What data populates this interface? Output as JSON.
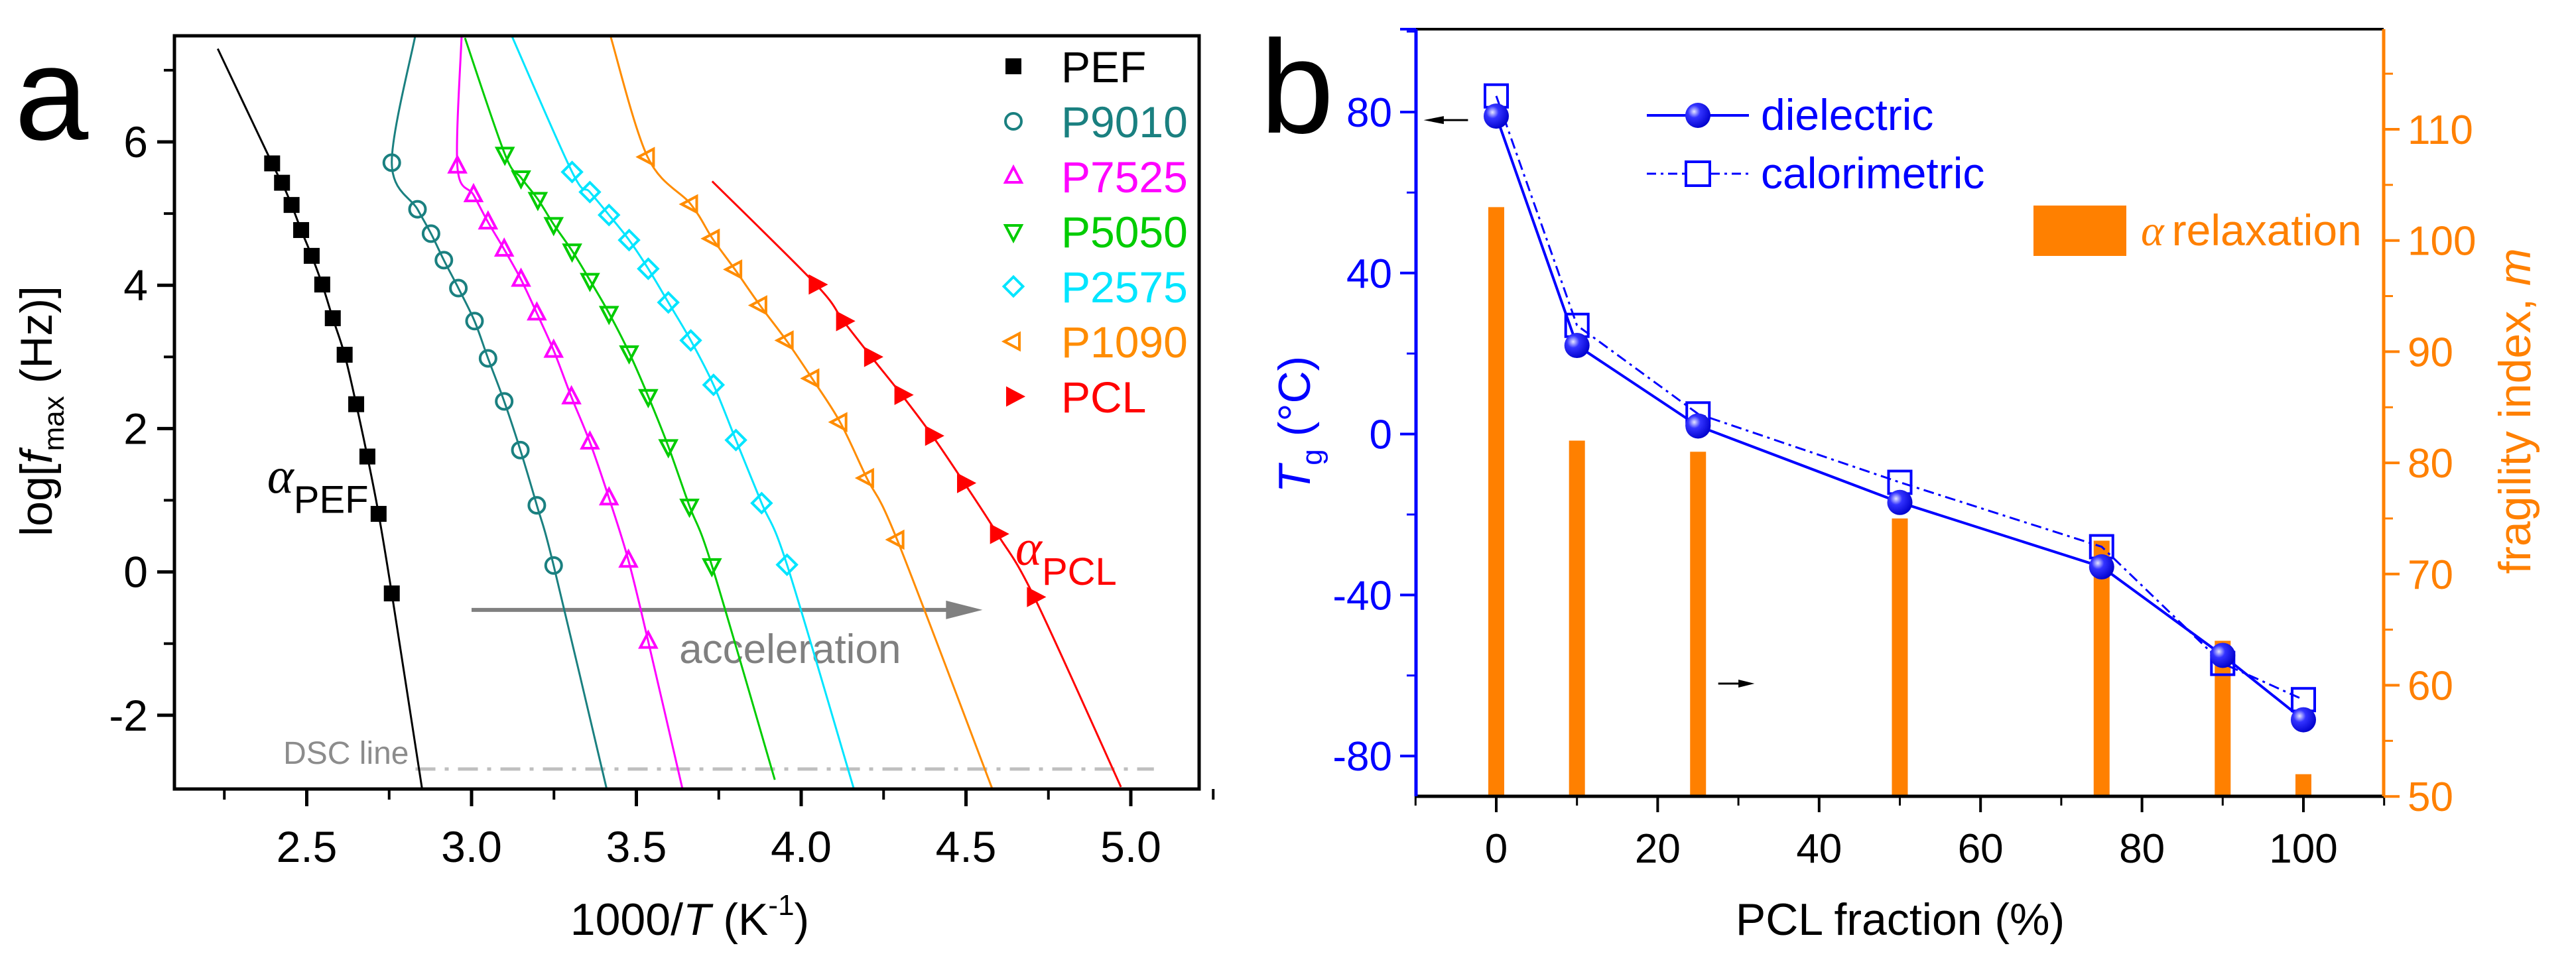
{
  "chart_data": [
    {
      "panel_label": "a",
      "type": "scatter",
      "xlabel_parts": [
        "1000/",
        "T",
        " (K",
        "-1",
        ")"
      ],
      "ylabel_parts": [
        "log[",
        "f",
        "max",
        " (Hz)]"
      ],
      "xlim": [
        2.1,
        5.2
      ],
      "ylim": [
        -3.03,
        7.5
      ],
      "xticks": [
        2.5,
        3.0,
        3.5,
        4.0,
        4.5,
        5.0
      ],
      "xtick_labels": [
        "2.5",
        "3.0",
        "3.5",
        "4.0",
        "4.5",
        "5.0"
      ],
      "yticks": [
        -2,
        0,
        2,
        4,
        6
      ],
      "ytick_labels": [
        "-2",
        "0",
        "2",
        "4",
        "6"
      ],
      "legend_position": "top-right",
      "series": [
        {
          "name": "PEF",
          "marker": "square-filled",
          "color": "#000000",
          "x": [
            2.395,
            2.425,
            2.454,
            2.483,
            2.515,
            2.547,
            2.579,
            2.615,
            2.65,
            2.684,
            2.718,
            2.758
          ],
          "y": [
            5.7,
            5.43,
            5.12,
            4.77,
            4.41,
            4.01,
            3.54,
            3.03,
            2.34,
            1.61,
            0.81,
            -0.3
          ],
          "fit_start": [
            2.23,
            7.3
          ],
          "fit_end": [
            2.85,
            -3.03
          ]
        },
        {
          "name": "P9010",
          "marker": "circle-open",
          "color": "#1a8080",
          "x": [
            2.758,
            2.836,
            2.877,
            2.916,
            2.96,
            3.009,
            3.05,
            3.099,
            3.148,
            3.198,
            3.249
          ],
          "y": [
            5.71,
            5.06,
            4.72,
            4.35,
            3.96,
            3.5,
            2.98,
            2.38,
            1.7,
            0.93,
            0.09
          ],
          "fit_start": [
            2.83,
            7.5
          ],
          "fit_end": [
            3.41,
            -3.03
          ]
        },
        {
          "name": "P7525",
          "marker": "triangle-up-open",
          "color": "#ff00ff",
          "x": [
            2.957,
            3.006,
            3.05,
            3.099,
            3.15,
            3.198,
            3.249,
            3.303,
            3.359,
            3.417,
            3.476,
            3.536
          ],
          "y": [
            5.66,
            5.26,
            4.88,
            4.5,
            4.08,
            3.61,
            3.09,
            2.44,
            1.81,
            1.03,
            0.16,
            -0.97
          ],
          "fit_start": [
            2.97,
            7.5
          ],
          "fit_end": [
            3.64,
            -3.03
          ]
        },
        {
          "name": "P5050",
          "marker": "triangle-down-open",
          "color": "#00cc00",
          "x": [
            3.101,
            3.15,
            3.201,
            3.249,
            3.305,
            3.359,
            3.417,
            3.478,
            3.536,
            3.597,
            3.661,
            3.729
          ],
          "y": [
            5.83,
            5.5,
            5.2,
            4.85,
            4.48,
            4.07,
            3.61,
            3.06,
            2.45,
            1.75,
            0.92,
            0.09
          ],
          "fit_start": [
            2.98,
            7.45
          ],
          "fit_end": [
            3.92,
            -2.9
          ]
        },
        {
          "name": "P2575",
          "marker": "diamond-open",
          "color": "#00e5ff",
          "x": [
            3.305,
            3.359,
            3.417,
            3.478,
            3.536,
            3.597,
            3.665,
            3.734,
            3.802,
            3.88,
            3.957
          ],
          "y": [
            5.58,
            5.3,
            4.98,
            4.63,
            4.23,
            3.76,
            3.23,
            2.61,
            1.84,
            0.96,
            0.1
          ],
          "fit_start": [
            3.12,
            7.5
          ],
          "fit_end": [
            4.16,
            -3.03
          ]
        },
        {
          "name": "P1090",
          "marker": "triangle-left-open",
          "color": "#ff8c00",
          "x": [
            3.534,
            3.665,
            3.731,
            3.799,
            3.875,
            3.955,
            4.033,
            4.118,
            4.199,
            4.291
          ],
          "y": [
            5.79,
            5.13,
            4.65,
            4.22,
            3.72,
            3.23,
            2.7,
            2.09,
            1.31,
            0.45
          ],
          "fit_start": [
            3.42,
            7.5
          ],
          "fit_end": [
            4.58,
            -3.03
          ]
        },
        {
          "name": "PCL",
          "marker": "triangle-right-filled",
          "color": "#ff0000",
          "x": [
            4.045,
            4.128,
            4.213,
            4.305,
            4.398,
            4.495,
            4.595,
            4.707
          ],
          "y": [
            4.01,
            3.5,
            3.0,
            2.47,
            1.9,
            1.24,
            0.53,
            -0.35
          ],
          "fit_start": [
            3.73,
            5.45
          ],
          "fit_end": [
            4.97,
            -3.0
          ]
        }
      ],
      "annotations": {
        "alpha_pef": {
          "symbol": "α",
          "sub": "PEF",
          "x": 2.38,
          "y": 1.1
        },
        "alpha_pcl": {
          "symbol": "α",
          "sub": "PCL",
          "x": 4.65,
          "y": 0.1
        },
        "acceleration": {
          "text": "acceleration",
          "x_from": 3.0,
          "x_to": 4.55,
          "y": -0.53
        },
        "dsc_line": {
          "text": "DSC line",
          "y": -2.75,
          "x_from": 2.83,
          "x_to": 5.07
        }
      }
    },
    {
      "panel_label": "b",
      "type": "line+bar",
      "xlabel": "PCL fraction (%)",
      "ylabel_left_parts": [
        "T",
        "g",
        " (°C)"
      ],
      "ylabel_right_parts": [
        "fragility index, ",
        "m"
      ],
      "xlim": [
        -10,
        110
      ],
      "ylim_left": [
        -90,
        100.6
      ],
      "ylim_right": [
        50,
        119
      ],
      "xticks": [
        0,
        20,
        40,
        60,
        80,
        100
      ],
      "xtick_labels": [
        "0",
        "20",
        "40",
        "60",
        "80",
        "100"
      ],
      "yticks_left": [
        -80,
        -40,
        0,
        40,
        80
      ],
      "ytick_left_labels": [
        "-80",
        "-40",
        "0",
        "40",
        "80"
      ],
      "yticks_right": [
        50,
        60,
        70,
        80,
        90,
        100,
        110
      ],
      "ytick_right_labels": [
        "50",
        "60",
        "70",
        "80",
        "90",
        "100",
        "110"
      ],
      "legend_position": "top-center",
      "x": [
        0,
        10,
        25,
        50,
        75,
        90,
        100
      ],
      "series": [
        {
          "name": "dielectric",
          "axis": "left",
          "style": "solid-line-sphere",
          "color": "#0000ff",
          "values": [
            79,
            22,
            2,
            -17,
            -33,
            -55,
            -71
          ]
        },
        {
          "name": "calorimetric",
          "axis": "left",
          "style": "dashdot-open-square",
          "color": "#0000ff",
          "values": [
            84,
            27,
            5,
            -12,
            -28,
            -57,
            -66
          ]
        },
        {
          "name": "α relaxation",
          "legend_symbol": "α",
          "legend_text": "relaxation",
          "axis": "right",
          "style": "bar",
          "color": "#ff8000",
          "values": [
            103,
            82,
            81,
            75,
            73,
            64,
            52
          ]
        }
      ]
    }
  ],
  "colors": {
    "left_axis": "#0000ff",
    "right_axis": "#ff8000",
    "gray": "#808080"
  }
}
